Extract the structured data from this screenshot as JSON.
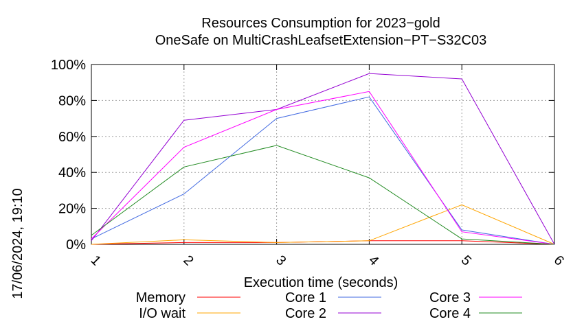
{
  "chart_data": {
    "type": "line",
    "title": "Resources Consumption for 2023−gold",
    "subtitle": "OneSafe on MultiCrashLeafsetExtension−PT−S32C03",
    "xlabel": "Execution time (seconds)",
    "ylabel": "",
    "x": [
      1,
      2,
      3,
      4,
      5,
      6
    ],
    "xlim": [
      1,
      6
    ],
    "ylim": [
      0,
      100
    ],
    "x_ticks": [
      "1",
      "2",
      "3",
      "4",
      "5",
      "6"
    ],
    "y_ticks": [
      "0%",
      "20%",
      "40%",
      "60%",
      "80%",
      "100%"
    ],
    "y_tick_values": [
      0,
      20,
      40,
      60,
      80,
      100
    ],
    "grid": true,
    "legend_position": "bottom",
    "series": [
      {
        "name": "Memory",
        "color": "#ff0000",
        "values": [
          0,
          1,
          1,
          2,
          2,
          0
        ]
      },
      {
        "name": "I/O wait",
        "color": "#ffa500",
        "values": [
          0,
          2.5,
          1,
          2,
          22,
          0
        ]
      },
      {
        "name": "Core 1",
        "color": "#4169e1",
        "values": [
          3,
          28,
          70,
          82,
          8,
          0
        ]
      },
      {
        "name": "Core 2",
        "color": "#9400d3",
        "values": [
          2,
          69,
          75,
          95,
          92,
          0
        ]
      },
      {
        "name": "Core 3",
        "color": "#ff00ff",
        "values": [
          3,
          54,
          75,
          85,
          7,
          0
        ]
      },
      {
        "name": "Core 4",
        "color": "#228b22",
        "values": [
          5,
          43,
          55,
          37,
          3,
          0
        ]
      }
    ]
  },
  "timestamp": "17/06/2024, 19:10"
}
